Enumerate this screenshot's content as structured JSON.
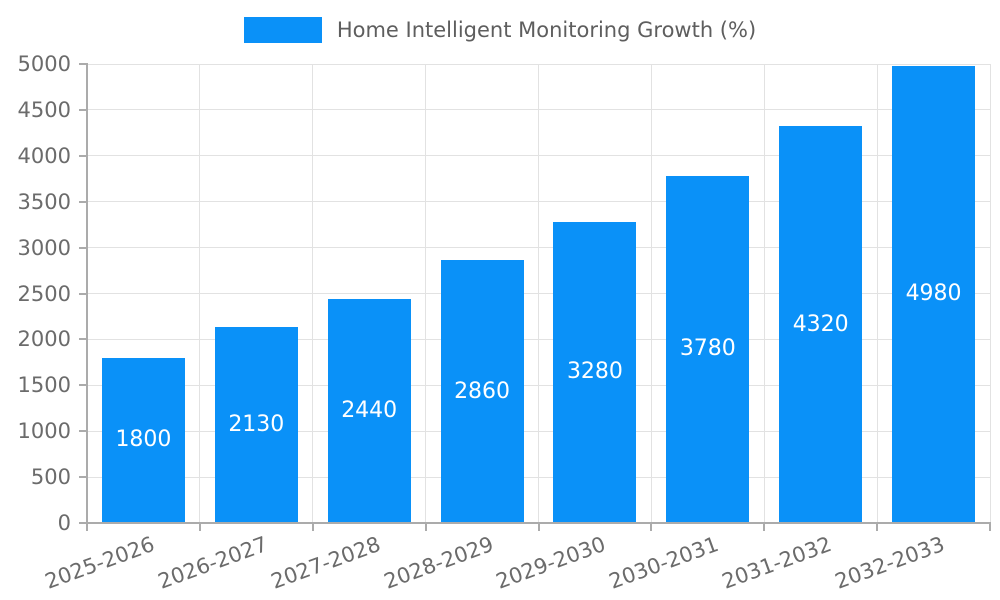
{
  "legend": {
    "label": "Home Intelligent Monitoring Growth (%)"
  },
  "chart_data": {
    "type": "bar",
    "title": "Home Intelligent Monitoring Growth (%)",
    "categories": [
      "2025-2026",
      "2026-2027",
      "2027-2028",
      "2028-2029",
      "2029-2030",
      "2030-2031",
      "2031-2032",
      "2032-2033"
    ],
    "values": [
      1800,
      2130,
      2440,
      2860,
      3280,
      3780,
      4320,
      4980
    ],
    "xlabel": "",
    "ylabel": "",
    "ylim": [
      0,
      5000
    ],
    "yticks": [
      0,
      500,
      1000,
      1500,
      2000,
      2500,
      3000,
      3500,
      4000,
      4500,
      5000
    ],
    "grid": true,
    "legend_position": "top-center",
    "x_label_rotation_deg": 20,
    "bar_color": "#0a91f8",
    "value_label_color": "#ffffff",
    "grid_color": "#e2e2e2",
    "axis_color": "#ababab",
    "tick_label_color": "#6b6b6b"
  }
}
